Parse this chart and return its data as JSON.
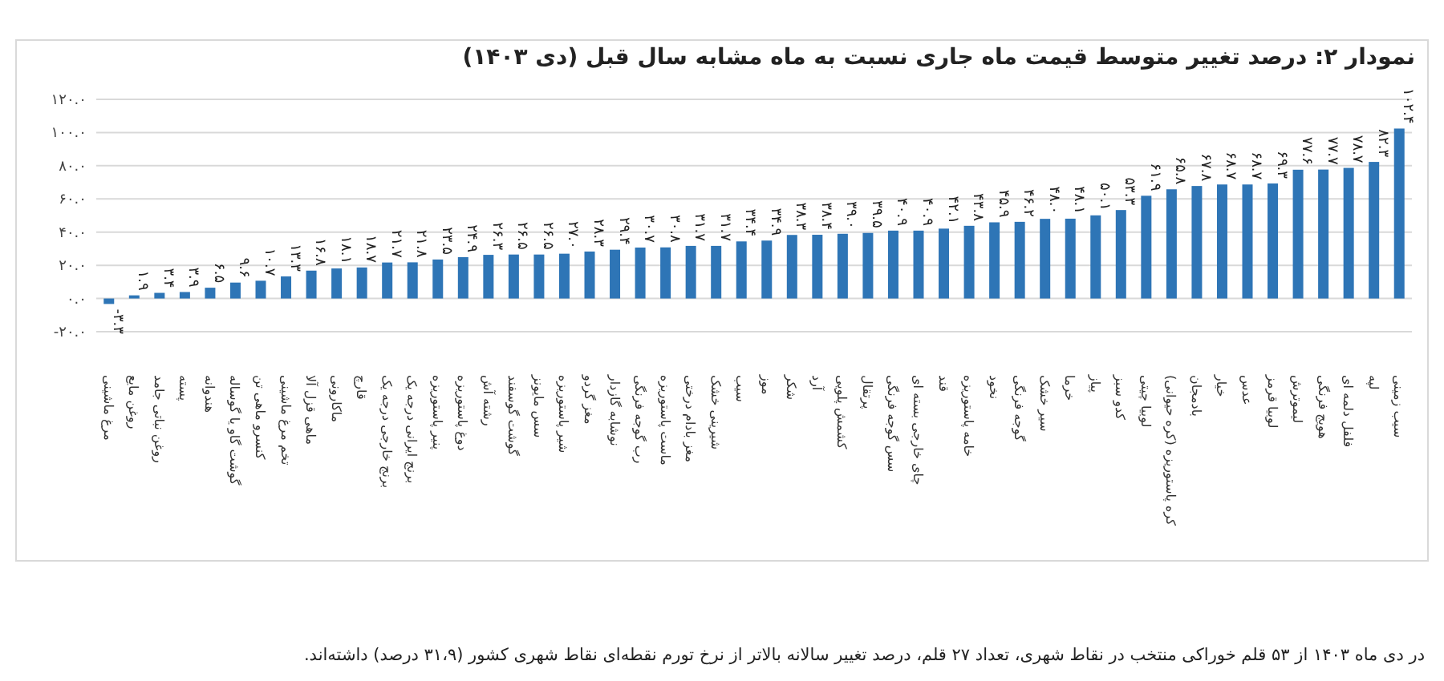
{
  "chart_data": {
    "type": "bar",
    "title": "نمودار ۲: درصد تغییر متوسط قیمت ماه جاری نسبت به ماه مشابه سال قبل (دی ۱۴۰۳)",
    "categories": [
      "مرغ ماشینی",
      "روغن مایع",
      "روغن نباتی جامد",
      "پسته",
      "هندوانه",
      "گوشت گاو یا گوساله",
      "کنسرو ماهی تن",
      "تخم مرغ ماشینی",
      "ماهی قزل آلا",
      "ماکارونی",
      "قارچ",
      "برنج خارجی درجه یک",
      "برنج ایرانی درجه یک",
      "پنیر پاستوریزه",
      "دوغ پاستوریزه",
      "رشته آش",
      "گوشت گوسفند",
      "سس مایونز",
      "شیر پاستوریزه",
      "مغز گردو",
      "نوشابه گازدار",
      "رب گوجه فرنگی",
      "ماست پاستوریزه",
      "مغز بادام درختی",
      "شیرینی خشک",
      "سیب",
      "موز",
      "شکر",
      "آرد",
      "کشمش پلویی",
      "پرتقال",
      "سس گوجه فرنگی",
      "چای خارجی بسته ای",
      "قند",
      "خامه پاستوریزه",
      "نخود",
      "گوجه فرنگی",
      "سیر خشک",
      "خرما",
      "پیاز",
      "کدو سبز",
      "لوبیا چیتی",
      "کره پاستوریزه (کره حیوانی)",
      "بادمجان",
      "خیار",
      "عدس",
      "لوبیا قرمز",
      "لیموترش",
      "هویج فرنگی",
      "فلفل دلمه ای",
      "لپه",
      "سیب زمینی"
    ],
    "values": [
      -3.3,
      1.9,
      3.4,
      3.9,
      6.5,
      9.6,
      10.7,
      13.3,
      16.8,
      18.1,
      18.7,
      21.7,
      21.8,
      23.5,
      24.9,
      26.3,
      26.5,
      26.5,
      27.0,
      28.3,
      29.4,
      30.7,
      30.8,
      31.7,
      31.7,
      34.4,
      34.9,
      38.3,
      38.4,
      39.0,
      39.5,
      40.9,
      40.9,
      42.1,
      43.8,
      45.9,
      46.2,
      48.0,
      48.1,
      50.1,
      53.3,
      61.9,
      65.8,
      67.8,
      68.7,
      68.7,
      69.3,
      77.6,
      77.7,
      78.7,
      82.3,
      102.4
    ],
    "value_labels": [
      "-۳.۳",
      "۱.۹",
      "۳.۴",
      "۳.۹",
      "۶.۵",
      "۹.۶",
      "۱۰.۷",
      "۱۳.۳",
      "۱۶.۸",
      "۱۸.۱",
      "۱۸.۷",
      "۲۱.۷",
      "۲۱.۸",
      "۲۳.۵",
      "۲۴.۹",
      "۲۶.۳",
      "۲۶.۵",
      "۲۶.۵",
      "۲۷.۰",
      "۲۸.۳",
      "۲۹.۴",
      "۳۰.۷",
      "۳۰.۸",
      "۳۱.۷",
      "۳۱.۷",
      "۳۴.۴",
      "۳۴.۹",
      "۳۸.۳",
      "۳۸.۴",
      "۳۹.۰",
      "۳۹.۵",
      "۴۰.۹",
      "۴۰.۹",
      "۴۲.۱",
      "۴۳.۸",
      "۴۵.۹",
      "۴۶.۲",
      "۴۸.۰",
      "۴۸.۱",
      "۵۰.۱",
      "۵۳.۳",
      "۶۱.۹",
      "۶۵.۸",
      "۶۷.۸",
      "۶۸.۷",
      "۶۸.۷",
      "۶۹.۳",
      "۷۷.۶",
      "۷۷.۷",
      "۷۸.۷",
      "۸۲.۳",
      "۱۰۲.۴"
    ],
    "color": "#2e75b6",
    "ylim": [
      -20,
      120
    ],
    "yticks": [
      {
        "value": -20,
        "label": "-۲۰.۰"
      },
      {
        "value": 0,
        "label": "۰.۰"
      },
      {
        "value": 20,
        "label": "۲۰.۰"
      },
      {
        "value": 40,
        "label": "۴۰.۰"
      },
      {
        "value": 60,
        "label": "۶۰.۰"
      },
      {
        "value": 80,
        "label": "۸۰.۰"
      },
      {
        "value": 100,
        "label": "۱۰۰.۰"
      },
      {
        "value": 120,
        "label": "۱۲۰.۰"
      }
    ],
    "grid": "y",
    "annotations": [
      "در دی ماه ۱۴۰۳ از ۵۳ قلم خوراکی منتخب در نقاط شهری، تعداد ۲۷ قلم، درصد تغییر سالانه بالاتر از نرخ تورم نقطه‌ای نقاط شهری کشور (۳۱،۹ درصد) داشته‌اند."
    ]
  }
}
